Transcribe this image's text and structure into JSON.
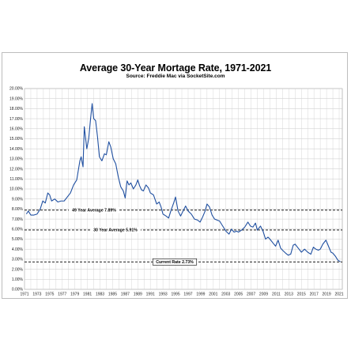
{
  "chart_data": {
    "type": "line",
    "title": "Average 30-Year Mortage Rate, 1971-2021",
    "subtitle": "Source: Freddie Mac via SocketSite.com",
    "xlabel": "",
    "ylabel": "",
    "xlim": [
      1971,
      2021.5
    ],
    "ylim": [
      0,
      20
    ],
    "grid": true,
    "yticks": [
      "0.00%",
      "1.00%",
      "2.00%",
      "3.00%",
      "4.00%",
      "5.00%",
      "6.00%",
      "7.00%",
      "8.00%",
      "9.00%",
      "10.00%",
      "11.00%",
      "12.00%",
      "13.00%",
      "14.00%",
      "15.00%",
      "16.00%",
      "17.00%",
      "18.00%",
      "19.00%",
      "20.00%"
    ],
    "xticks": [
      "1971",
      "1973",
      "1975",
      "1977",
      "1979",
      "1981",
      "1983",
      "1985",
      "1987",
      "1989",
      "1991",
      "1993",
      "1995",
      "1997",
      "1999",
      "2001",
      "2003",
      "2005",
      "2007",
      "2009",
      "2011",
      "2013",
      "2015",
      "2017",
      "2019",
      "2021"
    ],
    "series": [
      {
        "color": "#1f4fa0",
        "x": [
          1971.3,
          1971.6,
          1972.0,
          1972.5,
          1973.0,
          1973.5,
          1973.9,
          1974.3,
          1974.7,
          1975.0,
          1975.3,
          1975.8,
          1976.3,
          1976.8,
          1977.3,
          1977.8,
          1978.3,
          1978.8,
          1979.3,
          1979.8,
          1980.0,
          1980.3,
          1980.5,
          1980.9,
          1981.2,
          1981.5,
          1981.75,
          1982.0,
          1982.3,
          1982.6,
          1982.9,
          1983.3,
          1983.7,
          1984.0,
          1984.4,
          1984.7,
          1985.1,
          1985.5,
          1985.9,
          1986.3,
          1986.7,
          1987.0,
          1987.3,
          1987.6,
          1987.9,
          1988.3,
          1988.7,
          1989.0,
          1989.3,
          1989.6,
          1989.9,
          1990.3,
          1990.7,
          1991.0,
          1991.5,
          1992.0,
          1992.4,
          1992.7,
          1993.0,
          1993.5,
          1993.9,
          1994.3,
          1994.7,
          1995.0,
          1995.4,
          1995.8,
          1996.2,
          1996.6,
          1997.0,
          1997.5,
          1998.0,
          1998.5,
          1998.9,
          1999.3,
          1999.7,
          2000.0,
          2000.4,
          2000.8,
          2001.2,
          2001.6,
          2002.0,
          2002.5,
          2003.0,
          2003.5,
          2003.9,
          2004.3,
          2004.7,
          2005.0,
          2005.5,
          2006.0,
          2006.5,
          2006.9,
          2007.3,
          2007.7,
          2008.0,
          2008.5,
          2008.9,
          2009.3,
          2009.7,
          2010.0,
          2010.5,
          2010.9,
          2011.3,
          2011.7,
          2012.0,
          2012.5,
          2012.9,
          2013.3,
          2013.7,
          2014.0,
          2014.5,
          2015.0,
          2015.5,
          2016.0,
          2016.5,
          2016.9,
          2017.3,
          2017.7,
          2018.0,
          2018.4,
          2018.9,
          2019.3,
          2019.7,
          2020.0,
          2020.4,
          2020.8,
          2021.2
        ],
        "y": [
          7.5,
          7.8,
          7.4,
          7.4,
          7.5,
          8.0,
          8.8,
          8.6,
          9.6,
          9.4,
          8.8,
          9.0,
          8.7,
          8.8,
          8.8,
          9.2,
          9.6,
          10.4,
          10.9,
          12.8,
          13.2,
          12.2,
          16.2,
          14.0,
          15.0,
          17.0,
          18.5,
          17.0,
          16.8,
          15.2,
          13.2,
          12.8,
          13.5,
          13.4,
          14.7,
          14.2,
          13.0,
          12.5,
          11.2,
          10.2,
          9.8,
          9.1,
          10.8,
          10.4,
          10.6,
          10.0,
          10.4,
          10.9,
          10.3,
          9.9,
          9.8,
          10.4,
          10.1,
          9.6,
          9.4,
          8.5,
          8.7,
          8.2,
          7.5,
          7.3,
          7.1,
          7.9,
          8.6,
          9.2,
          7.8,
          7.3,
          7.8,
          8.3,
          7.8,
          7.5,
          7.0,
          6.9,
          6.7,
          7.2,
          7.8,
          8.5,
          8.2,
          7.4,
          7.0,
          6.9,
          6.8,
          6.3,
          5.8,
          5.5,
          6.0,
          5.7,
          5.8,
          5.7,
          5.9,
          6.2,
          6.7,
          6.3,
          6.2,
          6.6,
          5.9,
          6.3,
          5.8,
          5.0,
          5.2,
          5.0,
          4.6,
          4.3,
          4.9,
          4.1,
          3.9,
          3.6,
          3.4,
          3.5,
          4.4,
          4.5,
          4.1,
          3.7,
          4.0,
          3.7,
          3.5,
          4.2,
          4.0,
          3.9,
          4.0,
          4.5,
          4.9,
          4.3,
          3.7,
          3.6,
          3.3,
          2.9,
          2.75
        ]
      }
    ],
    "reference_lines": [
      {
        "label": "49 Year Average 7.89%",
        "value": 7.89
      },
      {
        "label": "30 Year Average 5.91%",
        "value": 5.91
      },
      {
        "label": "Current Rate 2.73%",
        "value": 2.73
      }
    ]
  }
}
